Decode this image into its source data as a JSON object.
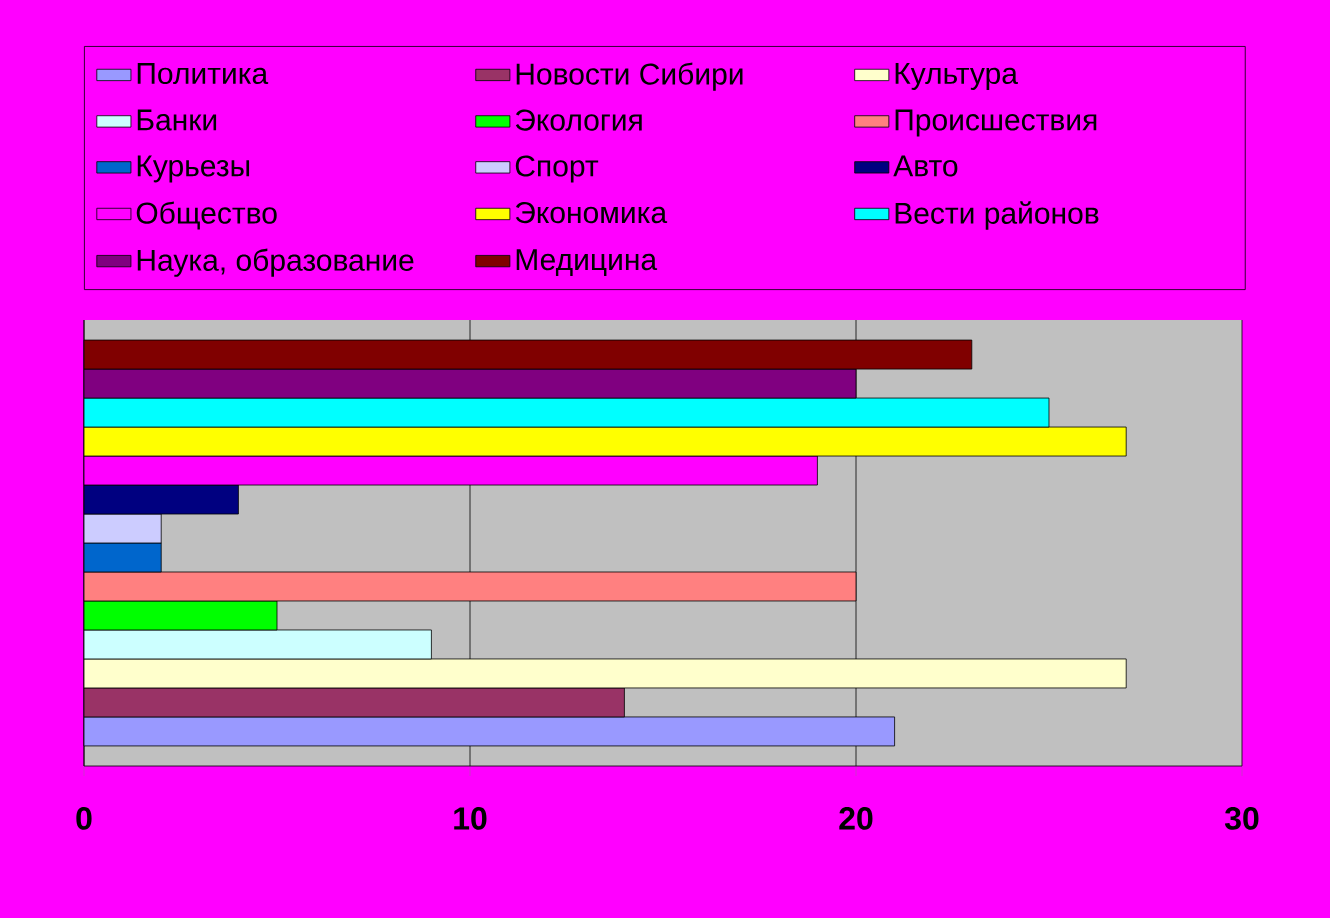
{
  "chart_data": {
    "type": "bar",
    "orientation": "horizontal",
    "categories": [
      null
    ],
    "series": [
      {
        "name": "Политика",
        "color": "#9999ff",
        "values": [
          21
        ]
      },
      {
        "name": "Новости Сибири",
        "color": "#993366",
        "values": [
          14
        ]
      },
      {
        "name": "Культура",
        "color": "#ffffcc",
        "values": [
          27
        ]
      },
      {
        "name": "Банки",
        "color": "#ccffff",
        "values": [
          9
        ]
      },
      {
        "name": "Экология",
        "color": "#00ff00",
        "values": [
          5
        ]
      },
      {
        "name": "Происшествия",
        "color": "#ff8080",
        "values": [
          20
        ]
      },
      {
        "name": "Курьезы",
        "color": "#0066cc",
        "values": [
          2
        ]
      },
      {
        "name": "Спорт",
        "color": "#ccccff",
        "values": [
          2
        ]
      },
      {
        "name": "Авто",
        "color": "#000080",
        "values": [
          4
        ]
      },
      {
        "name": "Общество",
        "color": "#ff00ff",
        "values": [
          19
        ]
      },
      {
        "name": "Экономика",
        "color": "#ffff00",
        "values": [
          27
        ]
      },
      {
        "name": "Вести районов",
        "color": "#00ffff",
        "values": [
          25
        ]
      },
      {
        "name": "Наука, образование",
        "color": "#800080",
        "values": [
          20
        ]
      },
      {
        "name": "Медицина",
        "color": "#800000",
        "values": [
          23
        ]
      }
    ],
    "xlim": [
      0,
      30
    ],
    "xticks": [
      0,
      10,
      20,
      30
    ],
    "grid": "x",
    "legend": "top",
    "tick_labels": "x"
  }
}
